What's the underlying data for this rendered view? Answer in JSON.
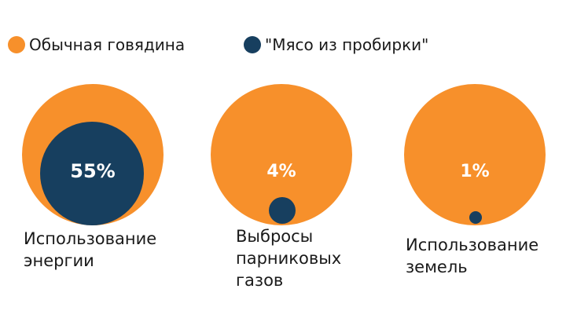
{
  "legend": [
    {
      "label": "Обычная говядина",
      "color": "#f7902b"
    },
    {
      "label": "\"Мясо из пробирки\"",
      "color": "#173f5f"
    }
  ],
  "chart_data": {
    "type": "proportional-area-circles",
    "series": [
      {
        "name": "Обычная говядина",
        "color": "#f7902b"
      },
      {
        "name": "\"Мясо из пробирки\"",
        "color": "#173f5f"
      }
    ],
    "categories": [
      {
        "label": "Использование энергии",
        "label_lines": [
          "Использование",
          "энергии"
        ],
        "value_label": "55%",
        "value": 55
      },
      {
        "label": "Выбросы парниковых газов",
        "label_lines": [
          "Выбросы",
          "парниковых",
          "газов"
        ],
        "value_label": "4%",
        "value": 4
      },
      {
        "label": "Использование земель",
        "label_lines": [
          "Использование",
          "земель"
        ],
        "value_label": "1%",
        "value": 1
      }
    ],
    "reference_value": 100
  }
}
